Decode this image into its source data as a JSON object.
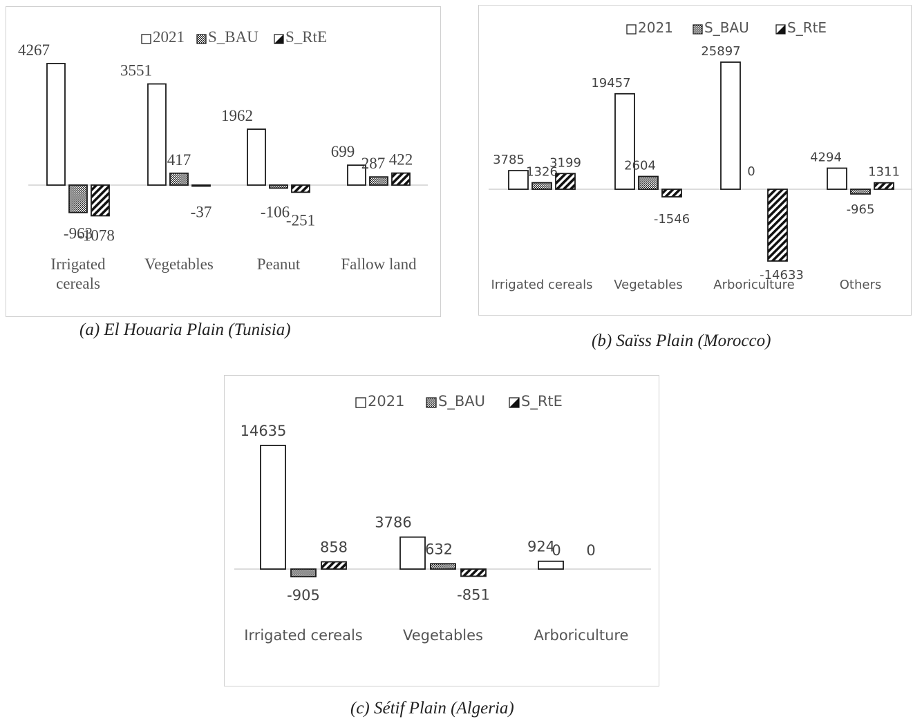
{
  "captions": {
    "a": "(a)  El Houaria Plain (Tunisia)",
    "b": "(b) Saïss Plain (Morocco)",
    "c": "(c) Sétif Plain (Algeria)"
  },
  "chart_data": [
    {
      "type": "bar",
      "title": "",
      "categories": [
        "Irrigated cereals",
        "Vegetables",
        "Peanut",
        "Fallow land"
      ],
      "series": [
        {
          "name": "2021",
          "pattern": "empty",
          "values": [
            4267,
            3551,
            1962,
            699
          ]
        },
        {
          "name": "S_BAU",
          "pattern": "checker",
          "values": [
            -963,
            417,
            -106,
            287
          ]
        },
        {
          "name": "S_RtE",
          "pattern": "diagonal",
          "values": [
            -1078,
            -37,
            -251,
            422
          ]
        }
      ],
      "legend": "top",
      "grid": false
    },
    {
      "type": "bar",
      "title": "",
      "categories": [
        "Irrigated cereals",
        "Vegetables",
        "Arboriculture",
        "Others"
      ],
      "series": [
        {
          "name": "2021",
          "pattern": "empty",
          "values": [
            3785,
            19457,
            25897,
            4294
          ]
        },
        {
          "name": "S_BAU",
          "pattern": "checker",
          "values": [
            1326,
            2604,
            0,
            -965
          ]
        },
        {
          "name": "S_RtE",
          "pattern": "diagonal",
          "values": [
            3199,
            -1546,
            -14633,
            1311
          ]
        }
      ],
      "legend": "top",
      "grid": false
    },
    {
      "type": "bar",
      "title": "",
      "categories": [
        "Irrigated cereals",
        "Vegetables",
        "Arboriculture"
      ],
      "series": [
        {
          "name": "2021",
          "pattern": "empty",
          "values": [
            14635,
            3786,
            924
          ]
        },
        {
          "name": "S_BAU",
          "pattern": "checker",
          "values": [
            -905,
            632,
            0
          ]
        },
        {
          "name": "S_RtE",
          "pattern": "diagonal",
          "values": [
            858,
            -851,
            0
          ]
        }
      ],
      "legend": "top",
      "grid": false
    }
  ]
}
